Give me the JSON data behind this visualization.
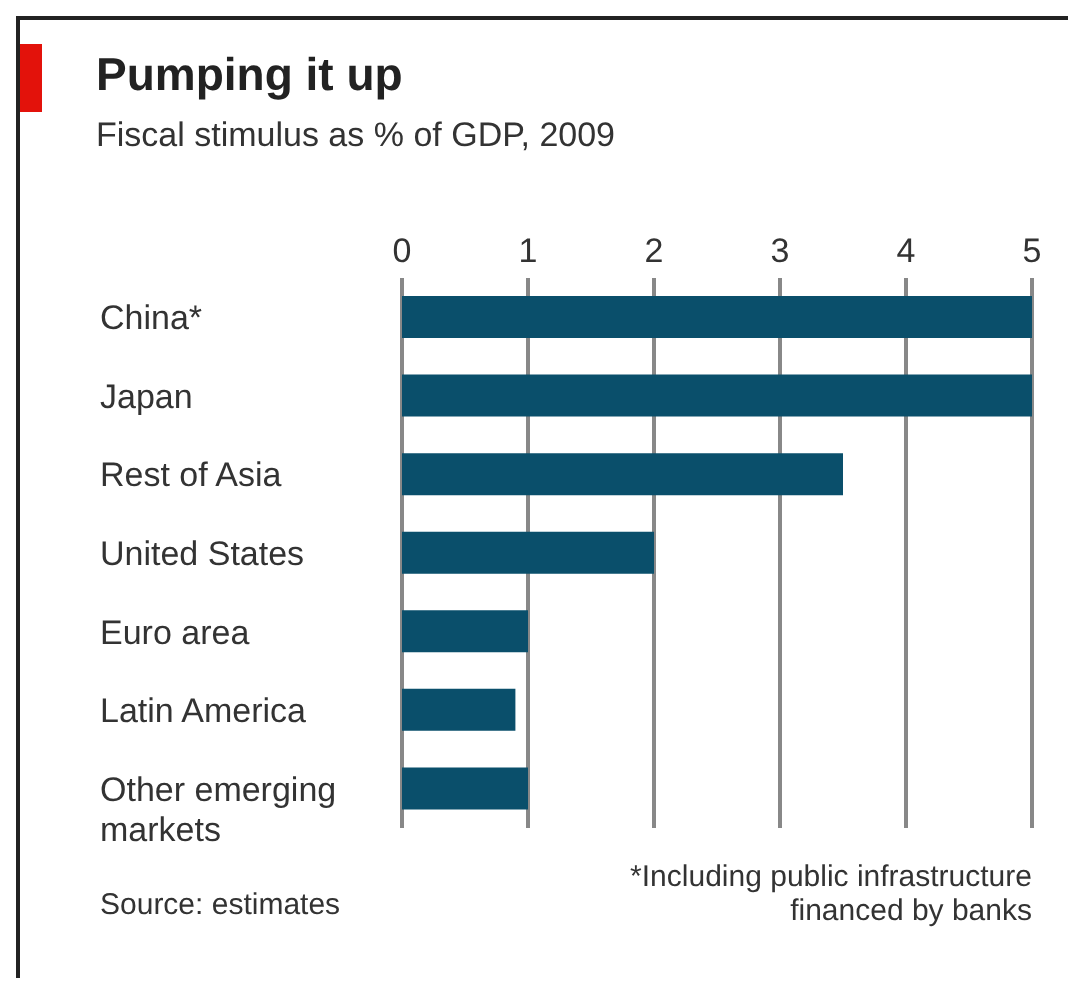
{
  "chart_data": {
    "type": "bar",
    "orientation": "horizontal",
    "title": "Pumping it up",
    "subtitle": "Fiscal stimulus as % of GDP, 2009",
    "categories": [
      "China*",
      "Japan",
      "Rest of Asia",
      "United States",
      "Euro area",
      "Latin America",
      "Other emerging markets"
    ],
    "values": [
      5,
      5,
      3.5,
      2,
      1,
      0.9,
      1
    ],
    "color": "#0a4f6b",
    "xlim": [
      0,
      5
    ],
    "xticks": [
      0,
      1,
      2,
      3,
      4,
      5
    ],
    "grid": "x",
    "annotations": [
      "*Including public infrastructure financed by banks",
      "Source: estimates"
    ]
  }
}
